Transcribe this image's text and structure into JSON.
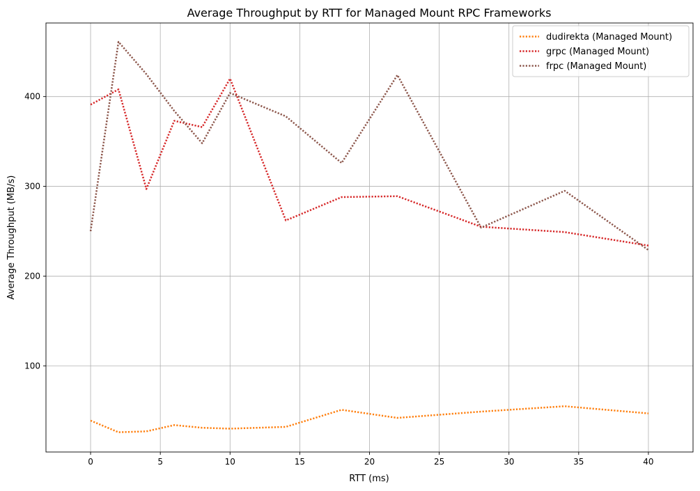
{
  "chart_data": {
    "type": "line",
    "title": "Average Throughput by RTT for Managed Mount RPC Frameworks",
    "xlabel": "RTT (ms)",
    "ylabel": "Average Throughput (MB/s)",
    "xlim": [
      -3.2,
      43.2
    ],
    "ylim": [
      4,
      482
    ],
    "x_ticks": [
      0,
      5,
      10,
      15,
      20,
      25,
      30,
      35,
      40
    ],
    "y_ticks": [
      100,
      200,
      300,
      400
    ],
    "grid": true,
    "legend_position": "top-right",
    "line_style": "dotted",
    "series": [
      {
        "name": "dudirekta (Managed Mount)",
        "color": "#ff7f0e",
        "x": [
          0,
          2,
          4,
          6,
          8,
          10,
          14,
          18,
          22,
          28,
          34,
          40
        ],
        "y": [
          39,
          26,
          27,
          34,
          31,
          30,
          32,
          51,
          42,
          49,
          55,
          47
        ]
      },
      {
        "name": "grpc (Managed Mount)",
        "color": "#d62728",
        "x": [
          0,
          2,
          4,
          6,
          8,
          10,
          14,
          18,
          22,
          28,
          34,
          40
        ],
        "y": [
          391,
          408,
          297,
          373,
          366,
          420,
          262,
          288,
          289,
          255,
          249,
          234
        ]
      },
      {
        "name": "frpc (Managed Mount)",
        "color": "#8c564b",
        "x": [
          0,
          2,
          4,
          6,
          8,
          10,
          14,
          18,
          22,
          28,
          34,
          40
        ],
        "y": [
          250,
          461,
          425,
          384,
          348,
          404,
          378,
          326,
          424,
          254,
          295,
          229
        ]
      }
    ]
  }
}
